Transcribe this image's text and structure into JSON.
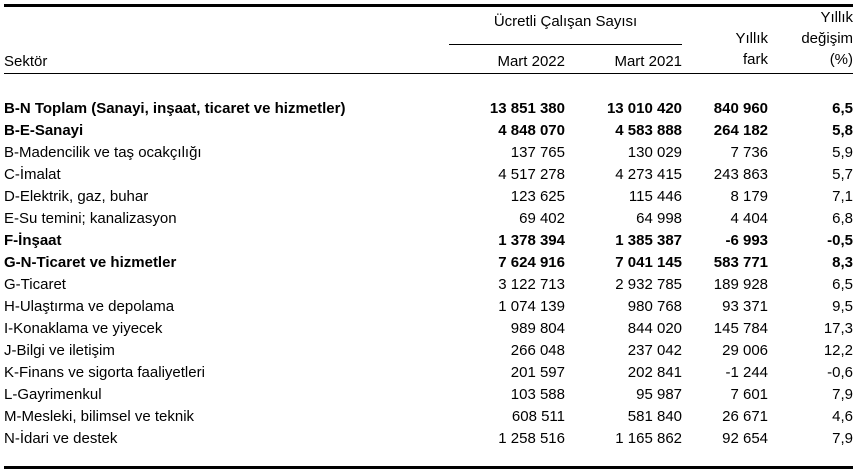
{
  "table": {
    "sector_header": "Sektör",
    "group_header": "Ücretli Çalışan Sayısı",
    "col_2022": "Mart 2022",
    "col_2021": "Mart 2021",
    "fark_header": [
      "Yıllık",
      "fark"
    ],
    "pct_header": [
      "Yıllık",
      "değişim",
      "(%)"
    ],
    "rows": [
      {
        "sector": "B-N Toplam (Sanayi, inşaat, ticaret ve hizmetler)",
        "bold": true,
        "values": [
          "13 851 380",
          "13 010 420",
          "840 960",
          "6,5"
        ]
      },
      {
        "sector": "B-E-Sanayi",
        "bold": true,
        "values": [
          "4 848 070",
          "4 583 888",
          "264 182",
          "5,8"
        ]
      },
      {
        "sector": "B-Madencilik ve taş ocakçılığı",
        "bold": false,
        "values": [
          "137 765",
          "130 029",
          "7 736",
          "5,9"
        ]
      },
      {
        "sector": "C-İmalat",
        "bold": false,
        "values": [
          "4 517 278",
          "4 273 415",
          "243 863",
          "5,7"
        ]
      },
      {
        "sector": "D-Elektrik, gaz, buhar",
        "bold": false,
        "values": [
          "123 625",
          "115 446",
          "8 179",
          "7,1"
        ]
      },
      {
        "sector": "E-Su temini; kanalizasyon",
        "bold": false,
        "values": [
          "69 402",
          "64 998",
          "4 404",
          "6,8"
        ]
      },
      {
        "sector": "F-İnşaat",
        "bold": true,
        "values": [
          "1 378 394",
          "1 385 387",
          "-6 993",
          "-0,5"
        ]
      },
      {
        "sector": "G-N-Ticaret ve hizmetler",
        "bold": true,
        "values": [
          "7 624 916",
          "7 041 145",
          "583 771",
          "8,3"
        ]
      },
      {
        "sector": "G-Ticaret",
        "bold": false,
        "values": [
          "3 122 713",
          "2 932 785",
          "189 928",
          "6,5"
        ]
      },
      {
        "sector": "H-Ulaştırma ve depolama",
        "bold": false,
        "values": [
          "1 074 139",
          "980 768",
          "93 371",
          "9,5"
        ]
      },
      {
        "sector": "I-Konaklama ve yiyecek",
        "bold": false,
        "values": [
          "989 804",
          "844 020",
          "145 784",
          "17,3"
        ]
      },
      {
        "sector": "J-Bilgi ve iletişim",
        "bold": false,
        "values": [
          "266 048",
          "237 042",
          "29 006",
          "12,2"
        ]
      },
      {
        "sector": "K-Finans ve sigorta faaliyetleri",
        "bold": false,
        "values": [
          "201 597",
          "202 841",
          "-1 244",
          "-0,6"
        ]
      },
      {
        "sector": "L-Gayrimenkul",
        "bold": false,
        "values": [
          "103 588",
          "95 987",
          "7 601",
          "7,9"
        ]
      },
      {
        "sector": "M-Mesleki, bilimsel ve teknik",
        "bold": false,
        "values": [
          "608 511",
          "581 840",
          "26 671",
          "4,6"
        ]
      },
      {
        "sector": "N-İdari ve destek",
        "bold": false,
        "values": [
          "1 258 516",
          "1 165 862",
          "92 654",
          "7,9"
        ]
      }
    ]
  }
}
